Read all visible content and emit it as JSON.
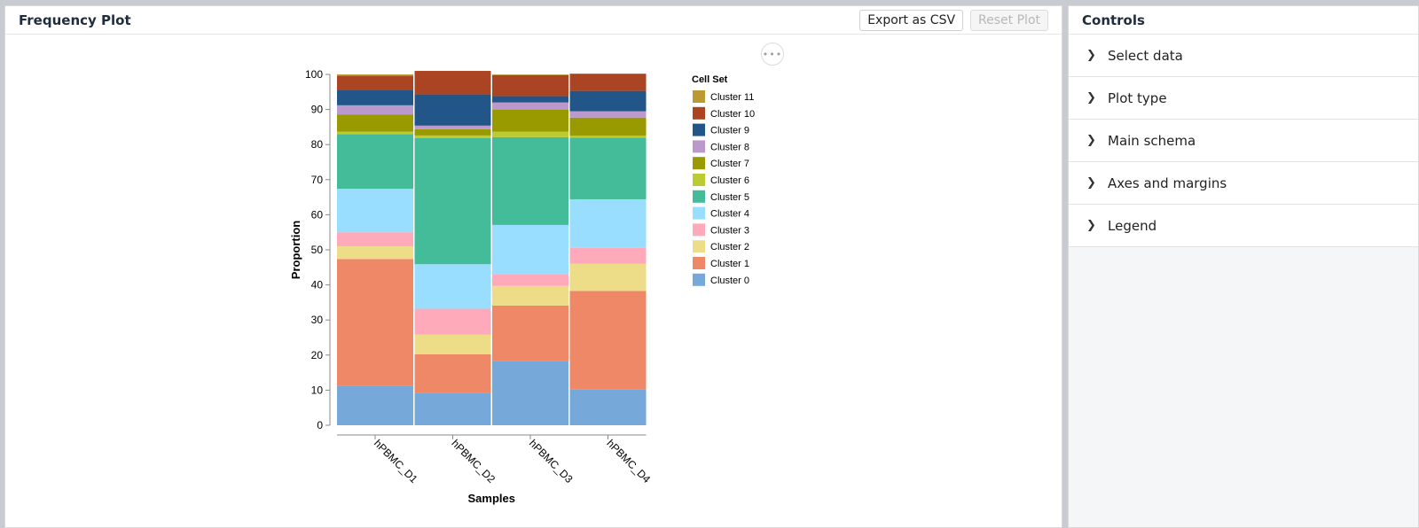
{
  "plot_panel": {
    "title": "Frequency Plot",
    "export_label": "Export as CSV",
    "reset_label": "Reset Plot",
    "more_label": "•••"
  },
  "controls": {
    "title": "Controls",
    "items": [
      {
        "label": "Select data",
        "icon": "chevron-right-icon"
      },
      {
        "label": "Plot type",
        "icon": "chevron-right-icon"
      },
      {
        "label": "Main schema",
        "icon": "chevron-right-icon"
      },
      {
        "label": "Axes and margins",
        "icon": "chevron-right-icon"
      },
      {
        "label": "Legend",
        "icon": "chevron-right-icon"
      }
    ]
  },
  "chart_data": {
    "type": "bar",
    "stacked": true,
    "title": "",
    "xlabel": "Samples",
    "ylabel": "Proportion",
    "ylim": [
      0,
      100
    ],
    "yticks": [
      0,
      10,
      20,
      30,
      40,
      50,
      60,
      70,
      80,
      90,
      100
    ],
    "grid": false,
    "legend_title": "Cell Set",
    "legend_position": "right",
    "categories": [
      "hPBMC_D1",
      "hPBMC_D2",
      "hPBMC_D3",
      "hPBMC_D4"
    ],
    "series": [
      {
        "name": "Cluster 0",
        "color": "#76a8da",
        "values": [
          11.2,
          9.3,
          18.4,
          10.3
        ]
      },
      {
        "name": "Cluster 1",
        "color": "#ee8866",
        "values": [
          36.2,
          10.9,
          15.7,
          28.0
        ]
      },
      {
        "name": "Cluster 2",
        "color": "#eedd88",
        "values": [
          3.6,
          5.6,
          5.6,
          7.7
        ]
      },
      {
        "name": "Cluster 3",
        "color": "#ffaabb",
        "values": [
          4.0,
          7.4,
          3.4,
          4.6
        ]
      },
      {
        "name": "Cluster 4",
        "color": "#99ddff",
        "values": [
          12.4,
          12.7,
          14.0,
          13.8
        ]
      },
      {
        "name": "Cluster 5",
        "color": "#44bb99",
        "values": [
          15.6,
          36.0,
          25.0,
          17.6
        ]
      },
      {
        "name": "Cluster 6",
        "color": "#bbcc33",
        "values": [
          0.7,
          0.7,
          1.6,
          0.5
        ]
      },
      {
        "name": "Cluster 7",
        "color": "#999900",
        "values": [
          4.9,
          1.8,
          6.3,
          5.2
        ]
      },
      {
        "name": "Cluster 8",
        "color": "#bb99cc",
        "values": [
          2.6,
          1.0,
          2.0,
          1.8
        ]
      },
      {
        "name": "Cluster 9",
        "color": "#225588",
        "values": [
          4.4,
          8.9,
          1.8,
          5.8
        ]
      },
      {
        "name": "Cluster 10",
        "color": "#aa4422",
        "values": [
          4.0,
          6.7,
          6.0,
          4.9
        ]
      },
      {
        "name": "Cluster 11",
        "color": "#bb9933",
        "values": [
          0.4,
          0.0,
          0.2,
          0.0
        ]
      }
    ]
  }
}
